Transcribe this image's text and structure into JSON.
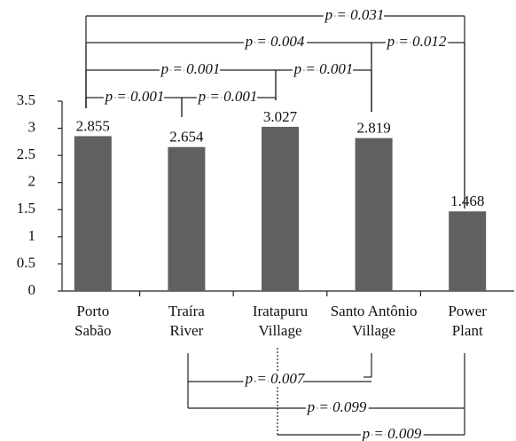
{
  "chart_data": {
    "type": "bar",
    "categories": [
      [
        "Porto",
        "Sabão"
      ],
      [
        "Traíra",
        "River"
      ],
      [
        "Iratapuru",
        "Village"
      ],
      [
        "Santo Antônio",
        "Village"
      ],
      [
        "Power",
        "Plant"
      ]
    ],
    "values": [
      2.855,
      2.654,
      3.027,
      2.819,
      1.468
    ],
    "color": "#606060",
    "ylim": [
      0,
      3.5
    ],
    "yticks": [
      0,
      0.5,
      1,
      1.5,
      2,
      2.5,
      3,
      3.5
    ],
    "annotations": [
      "p = 0.031",
      "p = 0.004",
      "p = 0.012",
      "p = 0.001",
      "p = 0.001",
      "p = 0.001",
      "p = 0.001",
      "p = 0.007",
      "p = 0.099",
      "p = 0.009"
    ]
  }
}
